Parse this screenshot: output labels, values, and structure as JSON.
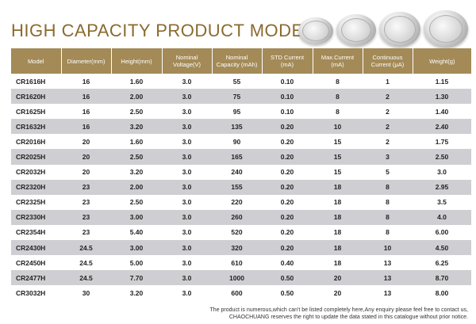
{
  "title": "HIGH CAPACITY PRODUCT MODEL",
  "colors": {
    "header_bg": "#a38a57",
    "title": "#8a6a2e",
    "row_alt": "#cfcfd3"
  },
  "table": {
    "headers": [
      "Model",
      "Diameter(mm)",
      "Height(mm)",
      "Nominal Voltage(V)",
      "Nominal Capacity (mAh)",
      "STD Current (mA)",
      "Max.Current (mA)",
      "Continuous Current (μA)",
      "Weight(g)"
    ],
    "rows": [
      [
        "CR1616H",
        "16",
        "1.60",
        "3.0",
        "55",
        "0.10",
        "8",
        "1",
        "1.15"
      ],
      [
        "CR1620H",
        "16",
        "2.00",
        "3.0",
        "75",
        "0.10",
        "8",
        "2",
        "1.30"
      ],
      [
        "CR1625H",
        "16",
        "2.50",
        "3.0",
        "95",
        "0.10",
        "8",
        "2",
        "1.40"
      ],
      [
        "CR1632H",
        "16",
        "3.20",
        "3.0",
        "135",
        "0.20",
        "10",
        "2",
        "2.40"
      ],
      [
        "CR2016H",
        "20",
        "1.60",
        "3.0",
        "90",
        "0.20",
        "15",
        "2",
        "1.75"
      ],
      [
        "CR2025H",
        "20",
        "2.50",
        "3.0",
        "165",
        "0.20",
        "15",
        "3",
        "2.50"
      ],
      [
        "CR2032H",
        "20",
        "3.20",
        "3.0",
        "240",
        "0.20",
        "15",
        "5",
        "3.0"
      ],
      [
        "CR2320H",
        "23",
        "2.00",
        "3.0",
        "155",
        "0.20",
        "18",
        "8",
        "2.95"
      ],
      [
        "CR2325H",
        "23",
        "2.50",
        "3.0",
        "220",
        "0.20",
        "18",
        "8",
        "3.5"
      ],
      [
        "CR2330H",
        "23",
        "3.00",
        "3.0",
        "260",
        "0.20",
        "18",
        "8",
        "4.0"
      ],
      [
        "CR2354H",
        "23",
        "5.40",
        "3.0",
        "520",
        "0.20",
        "18",
        "8",
        "6.00"
      ],
      [
        "CR2430H",
        "24.5",
        "3.00",
        "3.0",
        "320",
        "0.20",
        "18",
        "10",
        "4.50"
      ],
      [
        "CR2450H",
        "24.5",
        "5.00",
        "3.0",
        "610",
        "0.40",
        "18",
        "13",
        "6.25"
      ],
      [
        "CR2477H",
        "24.5",
        "7.70",
        "3.0",
        "1000",
        "0.50",
        "20",
        "13",
        "8.70"
      ],
      [
        "CR3032H",
        "30",
        "3.20",
        "3.0",
        "600",
        "0.50",
        "20",
        "13",
        "8.00"
      ]
    ]
  },
  "footer": {
    "line1": "The product is numerous,which can't be listed completely here,Any enquiry please feel free to contact us,",
    "line2": "CHAOCHUANG reserves the right to update the data stated in this catalogue without prior notice."
  }
}
